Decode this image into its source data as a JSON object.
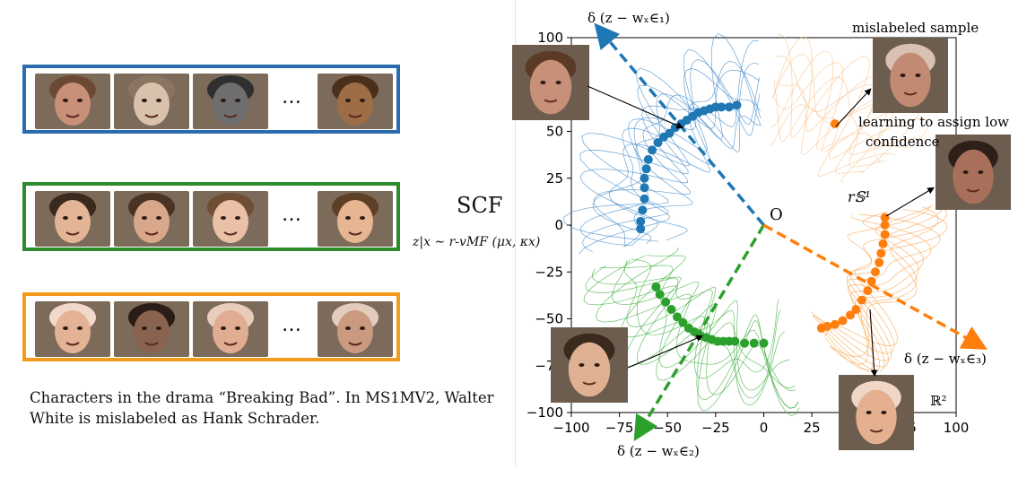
{
  "left_panel": {
    "dots": "…",
    "scf_label": "SCF",
    "scf_equation": "z|x ∼ r-vMF (μx, κx)",
    "caption": "Characters in the drama “Breaking Bad”. In MS1MV2, Walter White is mislabeled as Hank Schrader.",
    "groups": [
      {
        "color": "#2b6cb0",
        "faces": 5
      },
      {
        "color": "#2e8b2e",
        "faces": 5
      },
      {
        "color": "#f29b1d",
        "faces": 5
      }
    ]
  },
  "annotations": {
    "mislabeled": "mislabeled sample",
    "learning_line1": "learning to assign low",
    "learning_line2": "confidence",
    "sphere_label": "r𝕊¹",
    "origin_label": "O",
    "space_label": "ℝ²",
    "w1_label": "δ (z − wₓ∈₁)",
    "w2_label": "δ (z − wₓ∈₂)",
    "w3_label": "δ (z − wₓ∈₃)"
  },
  "colors": {
    "blue": "#1f77b4",
    "green": "#2ca02c",
    "orange": "#ff7f0e"
  },
  "chart_data": {
    "type": "scatter",
    "xlim": [
      -100,
      100
    ],
    "ylim": [
      -100,
      100
    ],
    "xticks": [
      "−100",
      "−75",
      "−50",
      "−25",
      "0",
      "25",
      "50",
      "75",
      "100"
    ],
    "yticks": [
      "100",
      "75",
      "50",
      "25",
      "0",
      "−25",
      "−50",
      "−75",
      "−100"
    ],
    "series": [
      {
        "color": "#1f77b4",
        "points": [
          [
            -58,
            40
          ],
          [
            -55,
            44
          ],
          [
            -52,
            47
          ],
          [
            -49,
            49
          ],
          [
            -46,
            52
          ],
          [
            -43,
            54
          ],
          [
            -40,
            56
          ],
          [
            -37,
            58
          ],
          [
            -34,
            60
          ],
          [
            -31,
            61
          ],
          [
            -28,
            62
          ],
          [
            -25,
            63
          ],
          [
            -22,
            63
          ],
          [
            -60,
            35
          ],
          [
            -61,
            30
          ],
          [
            -62,
            25
          ],
          [
            -62,
            20
          ],
          [
            -62,
            14
          ],
          [
            -63,
            8
          ],
          [
            -64,
            2
          ],
          [
            -64,
            -2
          ],
          [
            -18,
            63
          ],
          [
            -14,
            64
          ]
        ]
      },
      {
        "color": "#2ca02c",
        "points": [
          [
            -56,
            -33
          ],
          [
            -54,
            -37
          ],
          [
            -51,
            -41
          ],
          [
            -48,
            -45
          ],
          [
            -45,
            -49
          ],
          [
            -42,
            -52
          ],
          [
            -39,
            -55
          ],
          [
            -36,
            -57
          ],
          [
            -33,
            -59
          ],
          [
            -30,
            -60
          ],
          [
            -27,
            -61
          ],
          [
            -24,
            -62
          ],
          [
            -21,
            -62
          ],
          [
            -18,
            -62
          ],
          [
            -15,
            -62
          ],
          [
            -10,
            -63
          ],
          [
            -5,
            -63
          ],
          [
            0,
            -63
          ]
        ]
      },
      {
        "color": "#ff7f0e",
        "points": [
          [
            63,
            4
          ],
          [
            63,
            0
          ],
          [
            63,
            -5
          ],
          [
            62,
            -10
          ],
          [
            61,
            -15
          ],
          [
            60,
            -20
          ],
          [
            58,
            -25
          ],
          [
            56,
            -30
          ],
          [
            54,
            -35
          ],
          [
            51,
            -40
          ],
          [
            48,
            -45
          ],
          [
            45,
            -48
          ],
          [
            41,
            -51
          ],
          [
            37,
            -53
          ],
          [
            33,
            -54
          ],
          [
            30,
            -55
          ],
          [
            37,
            54
          ]
        ]
      }
    ],
    "arrows": [
      {
        "color": "#1f77b4",
        "to": [
          -85,
          104
        ]
      },
      {
        "color": "#2ca02c",
        "to": [
          -65,
          -111
        ]
      },
      {
        "color": "#ff7f0e",
        "to": [
          112,
          -64
        ]
      }
    ]
  }
}
